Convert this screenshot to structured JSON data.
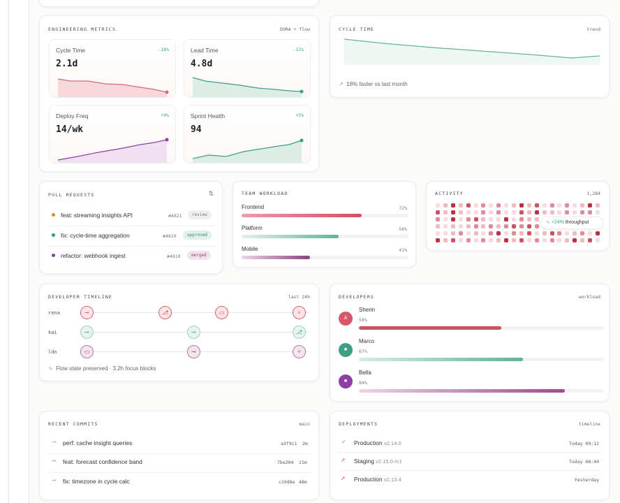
{
  "engineering_metrics": {
    "title": "ENGINEERING METRICS",
    "tag": "DORA + flow",
    "cards": [
      {
        "label": "Cycle Time",
        "delta": "-18%",
        "value": "2.1d",
        "color": "#d56a78"
      },
      {
        "label": "Lead Time",
        "delta": "-12%",
        "value": "4.8d",
        "color": "#3e9e84"
      },
      {
        "label": "Deploy Freq",
        "delta": "+9%",
        "value": "14/wk",
        "color": "#8d3fa3"
      },
      {
        "label": "Sprint Health",
        "delta": "+3%",
        "value": "94",
        "color": "#3e9e84"
      }
    ]
  },
  "cycle_time": {
    "title": "CYCLE TIME",
    "tag": "trend",
    "note": "18% faster vs last month"
  },
  "pull_requests": {
    "title": "PULL REQUESTS",
    "items": [
      {
        "title": "feat: streaming insights API",
        "id": "#4821",
        "status": "review",
        "dot": "#d8901a"
      },
      {
        "title": "fix: cycle-time aggregation",
        "id": "#4819",
        "status": "approved",
        "dot": "#2f9a7d"
      },
      {
        "title": "refactor: webhook ingest",
        "id": "#4810",
        "status": "merged",
        "dot": "#8d3fa3"
      }
    ]
  },
  "team_workload": {
    "title": "TEAM WORKLOAD",
    "items": [
      {
        "name": "Frontend",
        "percent_label": "72%",
        "value": 0.72
      },
      {
        "name": "Platform",
        "percent_label": "58%",
        "value": 0.58
      },
      {
        "name": "Mobile",
        "percent_label": "41%",
        "value": 0.41
      }
    ]
  },
  "activity": {
    "title": "ACTIVITY",
    "count": "1,284",
    "tooltip_delta": "+24%",
    "tooltip_label": "throughput"
  },
  "developer_timeline": {
    "title": "DEVELOPER TIMELINE",
    "tag": "last 24h",
    "rows": [
      {
        "name": "rena"
      },
      {
        "name": "kai"
      },
      {
        "name": "ldn"
      }
    ],
    "footer": "Flow state preserved · 3.2h focus blocks"
  },
  "developers": {
    "title": "DEVELOPERS",
    "tag": "workload",
    "items": [
      {
        "name": "Sherin",
        "percent_label": "58%",
        "value": 0.58,
        "initial": "A",
        "color": "#d8556a"
      },
      {
        "name": "Marco",
        "percent_label": "67%",
        "value": 0.67,
        "initial": "■",
        "color": "#3f9e84"
      },
      {
        "name": "Bella",
        "percent_label": "84%",
        "value": 0.84,
        "initial": "■",
        "color": "#8d3fa3"
      }
    ]
  },
  "recent_commits": {
    "title": "RECENT COMMITS",
    "branch": "main",
    "items": [
      {
        "message": "perf: cache insight queries",
        "hash": "a3f9c1",
        "age": "2m"
      },
      {
        "message": "feat: forecast confidence band",
        "hash": "7be204",
        "age": "21m"
      },
      {
        "message": "fix: timezone in cycle calc",
        "hash": "c10d8e",
        "age": "48m"
      }
    ]
  },
  "deployments": {
    "title": "DEPLOYMENTS",
    "tag": "timeline",
    "items": [
      {
        "env": "Production",
        "version": "v2.14.0",
        "time": "Today 09:12",
        "icon": "check-icon"
      },
      {
        "env": "Staging",
        "version": "v2.15.0-rc1",
        "time": "Today 08:40",
        "icon": "rocket-icon"
      },
      {
        "env": "Production",
        "version": "v2.13.4",
        "time": "Yesterday",
        "icon": "rocket-icon"
      }
    ]
  }
}
